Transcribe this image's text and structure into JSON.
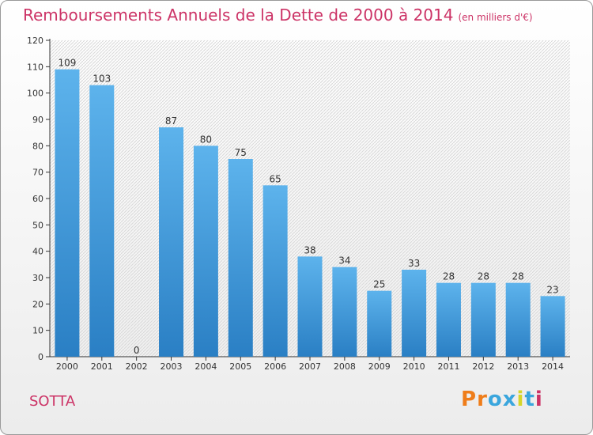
{
  "header": {
    "title": "Remboursements Annuels de la Dette de 2000 à 2014",
    "unit": "(en milliers d'€)"
  },
  "footer": {
    "commune": "SOTTA",
    "logo_text": "Proxiti",
    "logo_colors": [
      "#ef7d1a",
      "#ef7d1a",
      "#3aa6dd",
      "#3aa6dd",
      "#d6d62a",
      "#3aa6dd",
      "#cc3366"
    ]
  },
  "chart_data": {
    "type": "bar",
    "title": "Remboursements Annuels de la Dette de 2000 à 2014",
    "xlabel": "",
    "ylabel": "",
    "categories": [
      "2000",
      "2001",
      "2002",
      "2003",
      "2004",
      "2005",
      "2006",
      "2007",
      "2008",
      "2009",
      "2010",
      "2011",
      "2012",
      "2013",
      "2014"
    ],
    "values": [
      109,
      103,
      0,
      87,
      80,
      75,
      65,
      38,
      34,
      25,
      33,
      28,
      28,
      28,
      23
    ],
    "ylim": [
      0,
      120
    ],
    "yticks": [
      0,
      10,
      20,
      30,
      40,
      50,
      60,
      70,
      80,
      90,
      100,
      110,
      120
    ],
    "grid": false,
    "bar_color": "#3d99d9"
  }
}
